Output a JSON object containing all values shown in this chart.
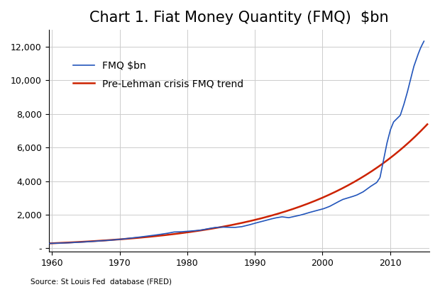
{
  "title": "Chart 1. Fiat Money Quantity (FMQ)  $bn",
  "fmq_label": "FMQ $bn",
  "trend_label": "Pre-Lehman crisis FMQ trend",
  "source_text": "Source: St Louis Fed  database (FRED)",
  "fmq_color": "#2255BB",
  "trend_color": "#CC2200",
  "xlim": [
    1959.5,
    2015.8
  ],
  "ylim": [
    -200,
    13000
  ],
  "yticks": [
    0,
    2000,
    4000,
    6000,
    8000,
    10000,
    12000
  ],
  "xticks": [
    1960,
    1970,
    1980,
    1990,
    2000,
    2010
  ],
  "background_color": "#FFFFFF",
  "grid_color": "#CCCCCC",
  "title_fontsize": 15,
  "legend_fontsize": 10,
  "tick_fontsize": 9,
  "source_fontsize": 7.5,
  "fmq_linewidth": 1.2,
  "trend_linewidth": 1.8
}
